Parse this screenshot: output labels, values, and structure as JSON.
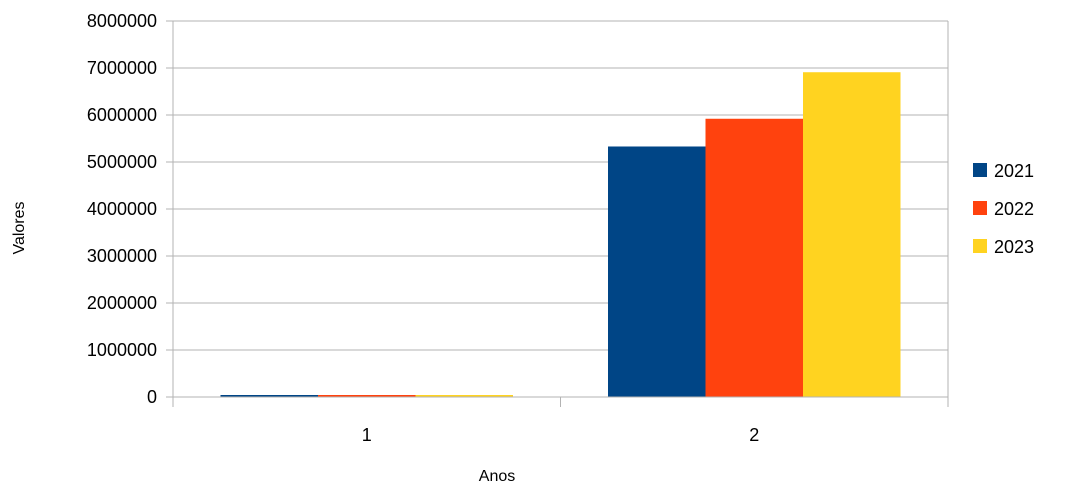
{
  "chart_data": {
    "type": "bar",
    "title": "",
    "xlabel": "Anos",
    "ylabel": "Valores",
    "categories": [
      "1",
      "2"
    ],
    "ylim": [
      0,
      8000000
    ],
    "yticks": [
      0,
      1000000,
      2000000,
      3000000,
      4000000,
      5000000,
      6000000,
      7000000,
      8000000
    ],
    "ytick_labels": [
      "0",
      "1000000",
      "2000000",
      "3000000",
      "4000000",
      "5000000",
      "6000000",
      "7000000",
      "8000000"
    ],
    "grid": true,
    "legend_position": "right",
    "series": [
      {
        "name": "2021",
        "color": "#004586",
        "values": [
          30000,
          5330000
        ]
      },
      {
        "name": "2022",
        "color": "#ff420e",
        "values": [
          30000,
          5920000
        ]
      },
      {
        "name": "2023",
        "color": "#ffd320",
        "values": [
          30000,
          6910000
        ]
      }
    ]
  }
}
